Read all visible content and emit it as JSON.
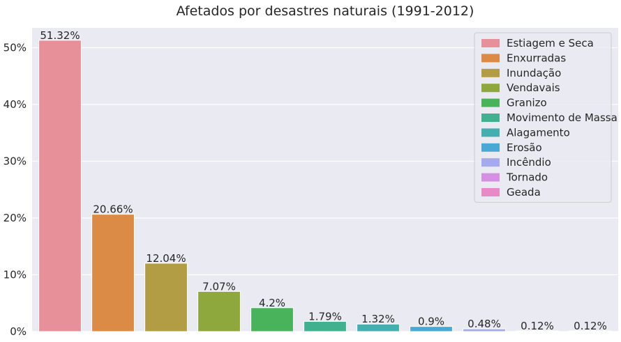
{
  "chart_data": {
    "type": "bar",
    "title": "Afetados por desastres naturais (1991-2012)",
    "xlabel": "",
    "ylabel": "",
    "ylim": [
      0,
      53.5
    ],
    "y_ticks": [
      0,
      10,
      20,
      30,
      40,
      50
    ],
    "y_tick_labels": [
      "0%",
      "10%",
      "20%",
      "30%",
      "40%",
      "50%"
    ],
    "grid": true,
    "legend_position": "top-right",
    "categories": [
      "Estiagem e Seca",
      "Enxurradas",
      "Inundação",
      "Vendavais",
      "Granizo",
      "Movimento de Massa",
      "Alagamento",
      "Erosão",
      "Incêndio",
      "Tornado",
      "Geada"
    ],
    "values": [
      51.32,
      20.66,
      12.04,
      7.07,
      4.2,
      1.79,
      1.32,
      0.9,
      0.48,
      0.12,
      0.12
    ],
    "data_labels": [
      "51.32%",
      "20.66%",
      "12.04%",
      "7.07%",
      "4.2%",
      "1.79%",
      "1.32%",
      "0.9%",
      "0.48%",
      "0.12%",
      "0.12%"
    ],
    "colors": [
      "#e8909a",
      "#dc8b46",
      "#b39d44",
      "#8fa83d",
      "#49b35b",
      "#41b08f",
      "#45aeaf",
      "#4aa8d5",
      "#a5aaee",
      "#d58fe3",
      "#e889c8"
    ],
    "background": "#eaeaf2",
    "grid_color": "#ffffff"
  }
}
